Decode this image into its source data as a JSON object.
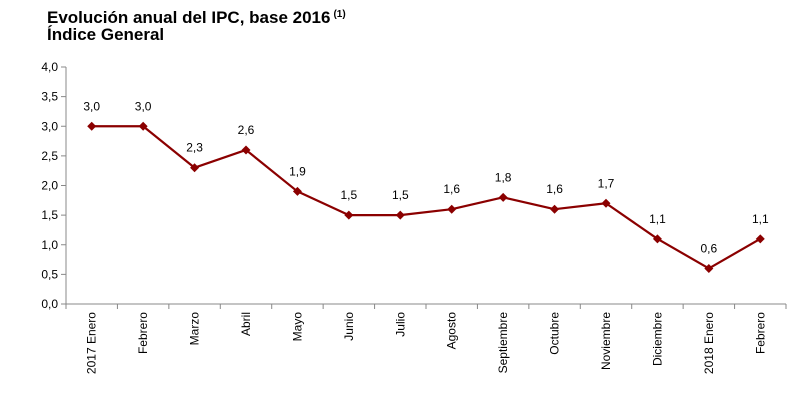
{
  "title": "Evolución anual del IPC, base 2016",
  "title_note": "(1)",
  "subtitle": "Índice General",
  "chart_data": {
    "type": "line",
    "title": "Evolución anual del IPC, base 2016 (1)",
    "subtitle": "Índice General",
    "categories": [
      "2017 Enero",
      "Febrero",
      "Marzo",
      "Abril",
      "Mayo",
      "Junio",
      "Julio",
      "Agosto",
      "Septiembre",
      "Octubre",
      "Noviembre",
      "Diciembre",
      "2018 Enero",
      "Febrero"
    ],
    "values": [
      3.0,
      3.0,
      2.3,
      2.6,
      1.9,
      1.5,
      1.5,
      1.6,
      1.8,
      1.6,
      1.7,
      1.1,
      0.6,
      1.1
    ],
    "value_labels": [
      "3,0",
      "3,0",
      "2,3",
      "2,6",
      "1,9",
      "1,5",
      "1,5",
      "1,6",
      "1,8",
      "1,6",
      "1,7",
      "1,1",
      "0,6",
      "1,1"
    ],
    "ylim": [
      0,
      4
    ],
    "yticks": [
      0,
      0.5,
      1.0,
      1.5,
      2.0,
      2.5,
      3.0,
      3.5,
      4.0
    ],
    "ytick_labels": [
      "0,0",
      "0,5",
      "1,0",
      "1,5",
      "2,0",
      "2,5",
      "3,0",
      "3,5",
      "4,0"
    ],
    "xlabel": "",
    "ylabel": "",
    "grid": false,
    "legend": "none",
    "series_color": "#8B0000",
    "marker": "diamond"
  }
}
